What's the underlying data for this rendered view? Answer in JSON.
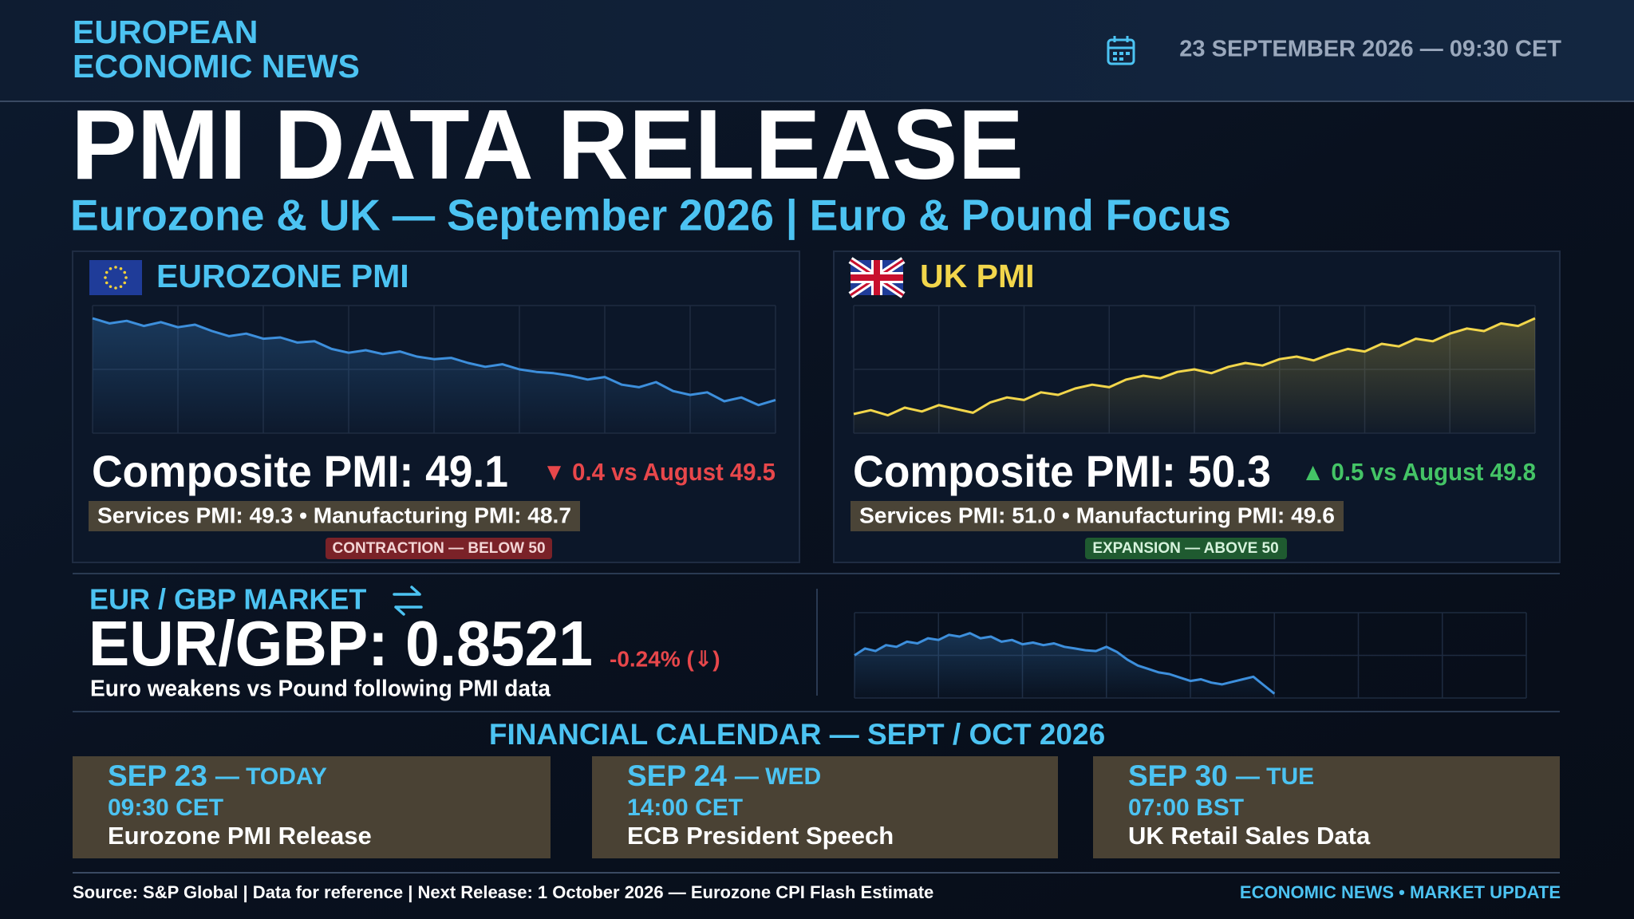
{
  "header": {
    "brand": [
      "EUROPEAN",
      "ECONOMIC NEWS"
    ],
    "date": "23 SEPTEMBER 2026 — 09:30 CET"
  },
  "title": "PMI DATA RELEASE",
  "subtitle": "Eurozone & UK — September 2026 | Euro & Pound Focus",
  "panels": [
    {
      "title": "EUROZONE PMI",
      "headline": "Composite PMI: 49.1",
      "change": "▼ 0.4 vs August 49.5",
      "detail": "Services PMI: 49.3 • Manufacturing PMI: 48.7",
      "badge": "CONTRACTION — BELOW 50",
      "chart_data": {
        "type": "line",
        "color": "#3d8fdc",
        "values": [
          90,
          86,
          88,
          84,
          87,
          83,
          85,
          80,
          76,
          78,
          74,
          75,
          71,
          72,
          66,
          63,
          65,
          62,
          64,
          60,
          58,
          59,
          55,
          52,
          54,
          50,
          48,
          47,
          45,
          42,
          44,
          38,
          36,
          40,
          33,
          30,
          32,
          25,
          28,
          22,
          26
        ],
        "xlim": [
          0,
          40
        ],
        "xticks": [
          0,
          5,
          10,
          15,
          20,
          25,
          30,
          35,
          40
        ],
        "ylim": [
          0,
          100
        ],
        "yticks": [
          0,
          50,
          100
        ]
      }
    },
    {
      "title": "UK PMI",
      "headline": "Composite PMI: 50.3",
      "change": "▲ 0.5 vs August 49.8",
      "detail": "Services PMI: 51.0 • Manufacturing PMI: 49.6",
      "badge": "EXPANSION — ABOVE 50",
      "chart_data": {
        "type": "line",
        "color": "#f2d64b",
        "values": [
          15,
          18,
          14,
          20,
          17,
          22,
          19,
          16,
          24,
          28,
          26,
          32,
          30,
          35,
          38,
          36,
          42,
          45,
          43,
          48,
          50,
          47,
          52,
          55,
          53,
          58,
          60,
          57,
          62,
          66,
          64,
          70,
          68,
          74,
          72,
          78,
          82,
          80,
          86,
          84,
          90
        ],
        "xlim": [
          0,
          40
        ],
        "xticks": [
          0,
          5,
          10,
          15,
          20,
          25,
          30,
          35,
          40
        ],
        "ylim": [
          0,
          100
        ],
        "yticks": [
          0,
          50,
          100
        ]
      }
    }
  ],
  "market": {
    "title": "EUR / GBP MARKET",
    "headline": "EUR/GBP: 0.8521",
    "change": "-0.24% (⇓)",
    "caption": "Euro weakens vs Pound following PMI data",
    "chart_data": {
      "type": "line",
      "color": "#3d8fdc",
      "values": [
        50,
        58,
        55,
        62,
        60,
        66,
        64,
        70,
        68,
        74,
        72,
        76,
        70,
        72,
        66,
        68,
        63,
        65,
        62,
        64,
        60,
        58,
        56,
        55,
        60,
        54,
        45,
        38,
        34,
        30,
        28,
        24,
        20,
        22,
        18,
        16,
        19,
        22,
        25,
        15,
        5
      ],
      "xlim": [
        0,
        64
      ],
      "xticks": [
        0,
        8,
        16,
        24,
        32,
        40,
        48,
        56,
        64
      ],
      "ylim": [
        0,
        100
      ],
      "yticks": [
        0,
        50,
        100
      ]
    }
  },
  "calendar": {
    "title": "FINANCIAL CALENDAR — SEPT / OCT 2026",
    "events": [
      {
        "date": "SEP 23",
        "day": "— TODAY",
        "time": "09:30 CET",
        "event": "Eurozone PMI Release"
      },
      {
        "date": "SEP 24",
        "day": "— WED",
        "time": "14:00 CET",
        "event": "ECB President Speech"
      },
      {
        "date": "SEP 30",
        "day": "— TUE",
        "time": "07:00 BST",
        "event": "UK Retail Sales Data"
      }
    ]
  },
  "footer": {
    "source": "Source: S&P Global | Data for reference | Next Release: 1 October 2026 — Eurozone CPI Flash Estimate",
    "links": "ECONOMIC NEWS • MARKET UPDATE"
  }
}
